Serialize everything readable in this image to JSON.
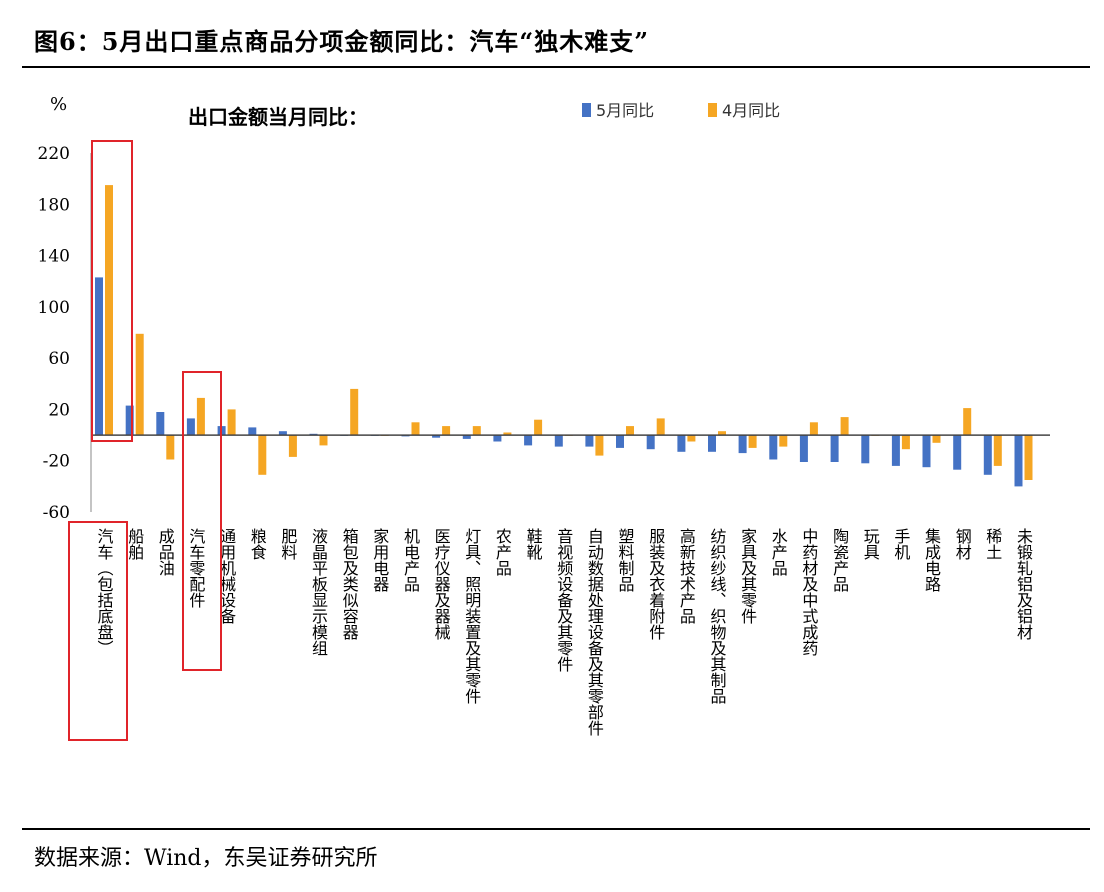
{
  "figure": {
    "title": "图6：5月出口重点商品分项金额同比：汽车“独木难支”",
    "source": "数据来源：Wind，东吴证券研究所"
  },
  "chart_data": {
    "type": "bar",
    "title": "出口金额当月同比：",
    "ylabel": "%",
    "ylim": [
      -60,
      220
    ],
    "yticks": [
      220,
      180,
      140,
      100,
      60,
      20,
      -20,
      -60
    ],
    "grid": false,
    "legend_position": "top-right",
    "categories": [
      "汽车（包括底盘）",
      "船舶",
      "成品油",
      "汽车零配件",
      "通用机械设备",
      "粮食",
      "肥料",
      "液晶平板显示模组",
      "箱包及类似容器",
      "家用电器",
      "机电产品",
      "医疗仪器及器械",
      "灯具、照明装置及其零件",
      "农产品",
      "鞋靴",
      "音视频设备及其零件",
      "自动数据处理设备及其零部件",
      "塑料制品",
      "服装及衣着附件",
      "高新技术产品",
      "纺织纱线、织物及其制品",
      "家具及其零件",
      "水产品",
      "中药材及中式成药",
      "陶瓷产品",
      "玩具",
      "手机",
      "集成电路",
      "钢材",
      "稀土",
      "未锻轧铝及铝材"
    ],
    "series": [
      {
        "name": "5月同比",
        "color": "#4472C4",
        "values": [
          123,
          23,
          18,
          13,
          7,
          6,
          3,
          1,
          0,
          0,
          -1,
          -2,
          -3,
          -5,
          -8,
          -9,
          -9,
          -10,
          -11,
          -13,
          -13,
          -14,
          -19,
          -21,
          -21,
          -22,
          -24,
          -25,
          -27,
          -31,
          -40
        ]
      },
      {
        "name": "4月同比",
        "color": "#F5A623",
        "values": [
          195,
          79,
          -19,
          29,
          20,
          -31,
          -17,
          -8,
          36,
          0,
          10,
          7,
          7,
          2,
          12,
          0,
          -16,
          7,
          13,
          -5,
          3,
          -10,
          -9,
          10,
          14,
          0,
          -11,
          -6,
          21,
          -24,
          -35
        ]
      }
    ],
    "highlighted_categories": [
      "汽车（包括底盘）",
      "汽车零配件"
    ]
  }
}
